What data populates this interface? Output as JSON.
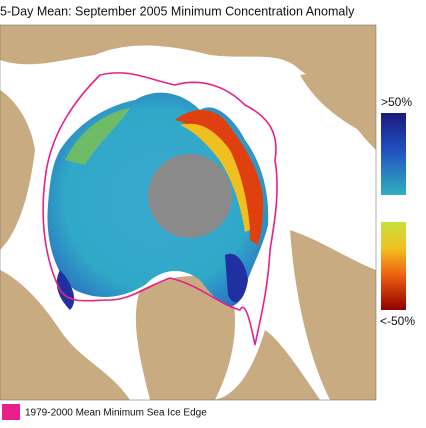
{
  "title": "5-Day Mean: September 2005 Minimum Concentration Anomaly",
  "colorbar": {
    "max_label": ">50%",
    "min_label": "<-50%"
  },
  "legend": {
    "label": "1979-2000 Mean Minimum Sea Ice Edge"
  }
}
